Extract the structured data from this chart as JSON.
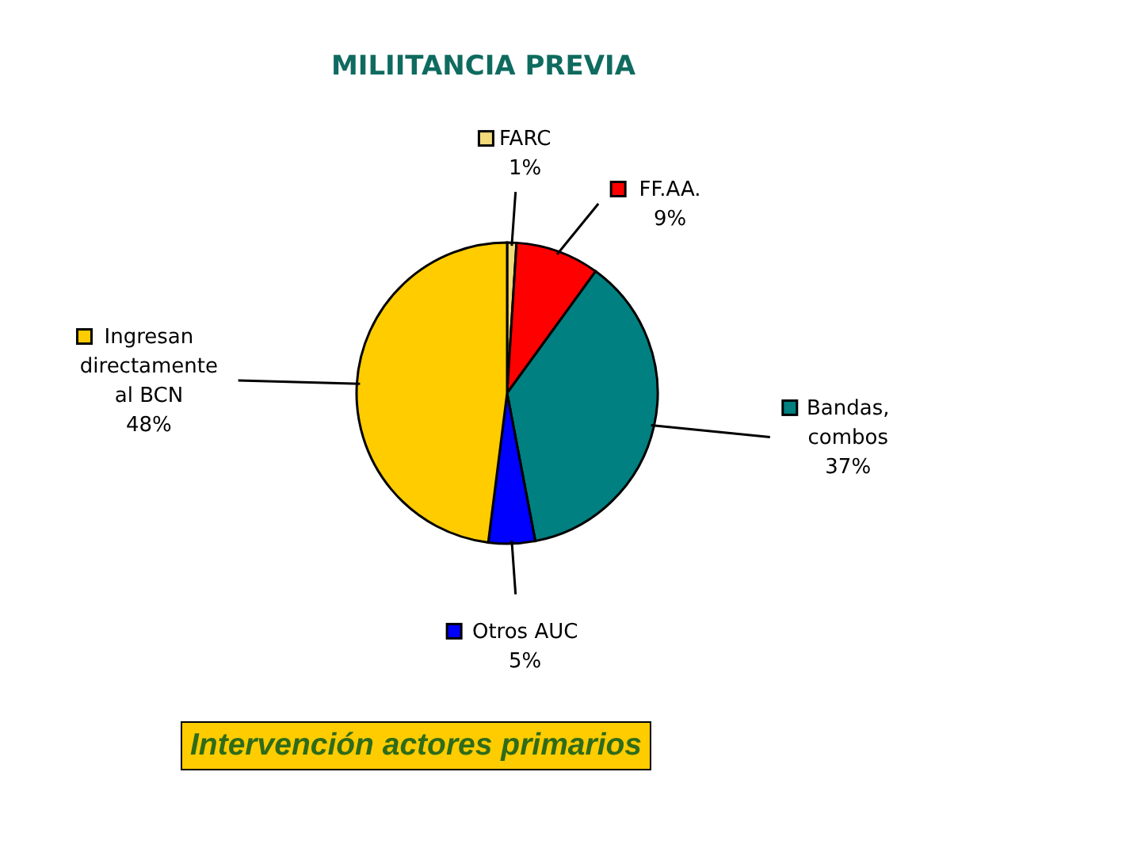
{
  "chart_data": {
    "type": "pie",
    "title": "MILIITANCIA PREVIA",
    "categories": [
      "FARC",
      "FF.AA.",
      "Bandas, combos",
      "Otros AUC",
      "Ingresan directamente al BCN"
    ],
    "values": [
      1,
      9,
      37,
      5,
      48
    ],
    "colors": [
      "#f2d97a",
      "#ff0000",
      "#008080",
      "#0000ff",
      "#ffcc00"
    ],
    "value_labels": [
      "1%",
      "9%",
      "37%",
      "5%",
      "48%"
    ],
    "legend": true,
    "annotations": [
      "Intervención actores primarios"
    ]
  }
}
